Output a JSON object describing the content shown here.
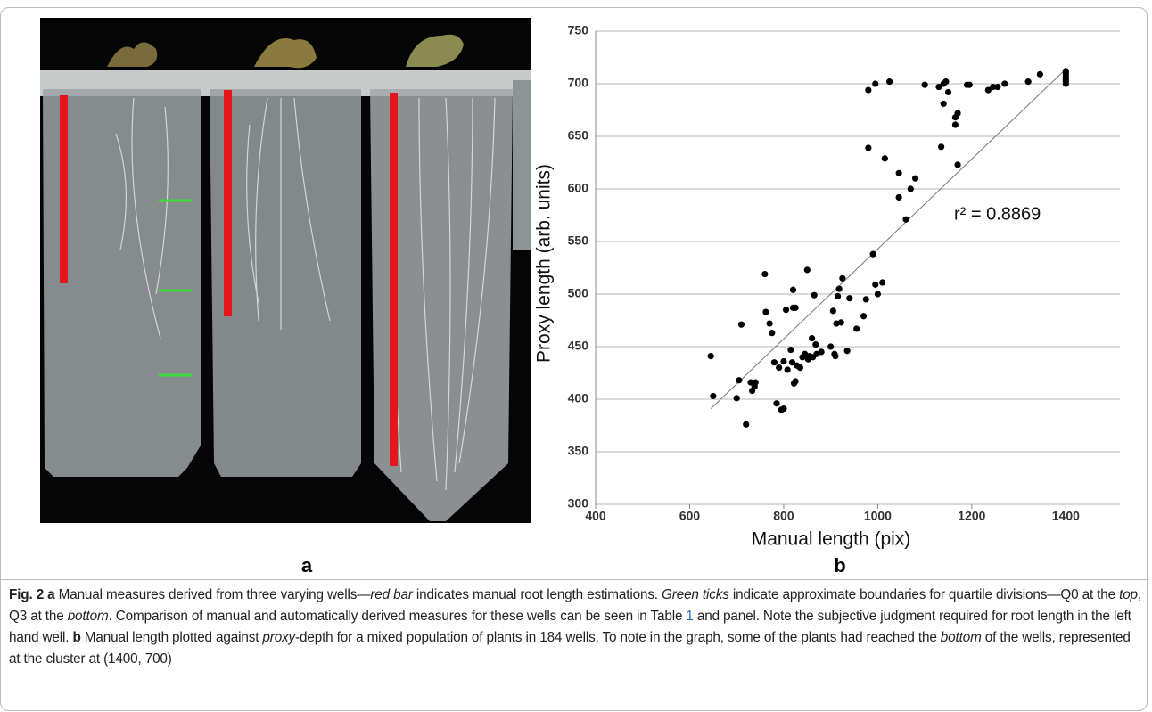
{
  "panel_labels": [
    "a",
    "b"
  ],
  "chart_data": {
    "type": "scatter",
    "xlabel": "Manual length (pix)",
    "ylabel": "Proxy length (arb. units)",
    "xlim": [
      400,
      1515
    ],
    "ylim": [
      300,
      750
    ],
    "xticks": [
      400,
      600,
      800,
      1000,
      1200,
      1400
    ],
    "yticks": [
      300,
      350,
      400,
      450,
      500,
      550,
      600,
      650,
      700,
      750
    ],
    "grid": true,
    "color": "#000000",
    "x": [
      645,
      650,
      700,
      705,
      710,
      720,
      730,
      733,
      738,
      740,
      760,
      762,
      770,
      775,
      780,
      785,
      790,
      795,
      800,
      800,
      805,
      808,
      815,
      818,
      820,
      820,
      822,
      825,
      825,
      828,
      835,
      840,
      845,
      850,
      852,
      855,
      860,
      862,
      865,
      868,
      870,
      880,
      900,
      905,
      908,
      910,
      912,
      915,
      918,
      922,
      925,
      935,
      940,
      955,
      970,
      975,
      990,
      995,
      1000,
      1010,
      1045,
      1045,
      1060,
      1070,
      1080,
      1015,
      980,
      980,
      995,
      1025,
      1100,
      1130,
      1140,
      1145,
      1150,
      1140,
      1165,
      1165,
      1170,
      1170,
      1135,
      1190,
      1195,
      1235,
      1245,
      1255,
      1270,
      1320,
      1345,
      1400,
      1400,
      1400,
      1400,
      1400,
      1400,
      1400
    ],
    "y": [
      441,
      403,
      401,
      418,
      471,
      376,
      416,
      408,
      412,
      416,
      519,
      483,
      472,
      463,
      435,
      396,
      430,
      390,
      391,
      436,
      485,
      428,
      447,
      435,
      487,
      504,
      415,
      417,
      487,
      432,
      430,
      440,
      443,
      523,
      438,
      441,
      458,
      440,
      499,
      452,
      443,
      445,
      450,
      484,
      443,
      441,
      472,
      498,
      505,
      473,
      515,
      446,
      496,
      467,
      479,
      495,
      538,
      509,
      500,
      511,
      592,
      615,
      571,
      600,
      610,
      629,
      639,
      694,
      700,
      702,
      699,
      697,
      700,
      702,
      692,
      681,
      661,
      668,
      672,
      623,
      640,
      699,
      699,
      694,
      697,
      697,
      700,
      702,
      709,
      700,
      702,
      704,
      706,
      708,
      710,
      712
    ],
    "trendline": {
      "x": [
        645,
        1400
      ],
      "y": [
        391,
        714
      ]
    },
    "annotation": "r² = 0.8869"
  },
  "caption": [
    "Fig. 2",
    " a",
    " Manual measures derived from three varying wells—",
    "red bar",
    " indicates manual root length estimations. ",
    "Green ticks",
    " indicate approximate boundaries for quartile divisions—Q0 at the ",
    "top",
    ", Q3 at the ",
    "bottom",
    ". Comparison of manual and automatically derived measures for these wells can be seen in Table ",
    "1",
    " and panel. Note the subjective judgment required for root length in the left hand well. ",
    "b",
    " Manual length plotted against ",
    "proxy",
    "-depth for a mixed population of plants in 184 wells. To note in the graph, some of the plants had reached the ",
    "bottom",
    " of the wells, represented at the cluster at (1400, 700)"
  ]
}
